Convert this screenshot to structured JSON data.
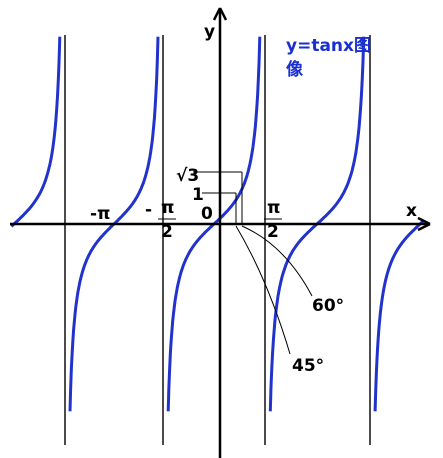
{
  "title": {
    "line1": "y=tanx图",
    "line2": "像"
  },
  "axes": {
    "x": "x",
    "y": "y"
  },
  "labels": {
    "neg_pi": "-π",
    "neg_half_pi": {
      "sign": "-",
      "num": "π",
      "den": "2"
    },
    "zero": "0",
    "half_pi": {
      "num": "π",
      "den": "2"
    },
    "sqrt3": "√3",
    "one": "1",
    "angle60": "60°",
    "angle45": "45°"
  }
}
